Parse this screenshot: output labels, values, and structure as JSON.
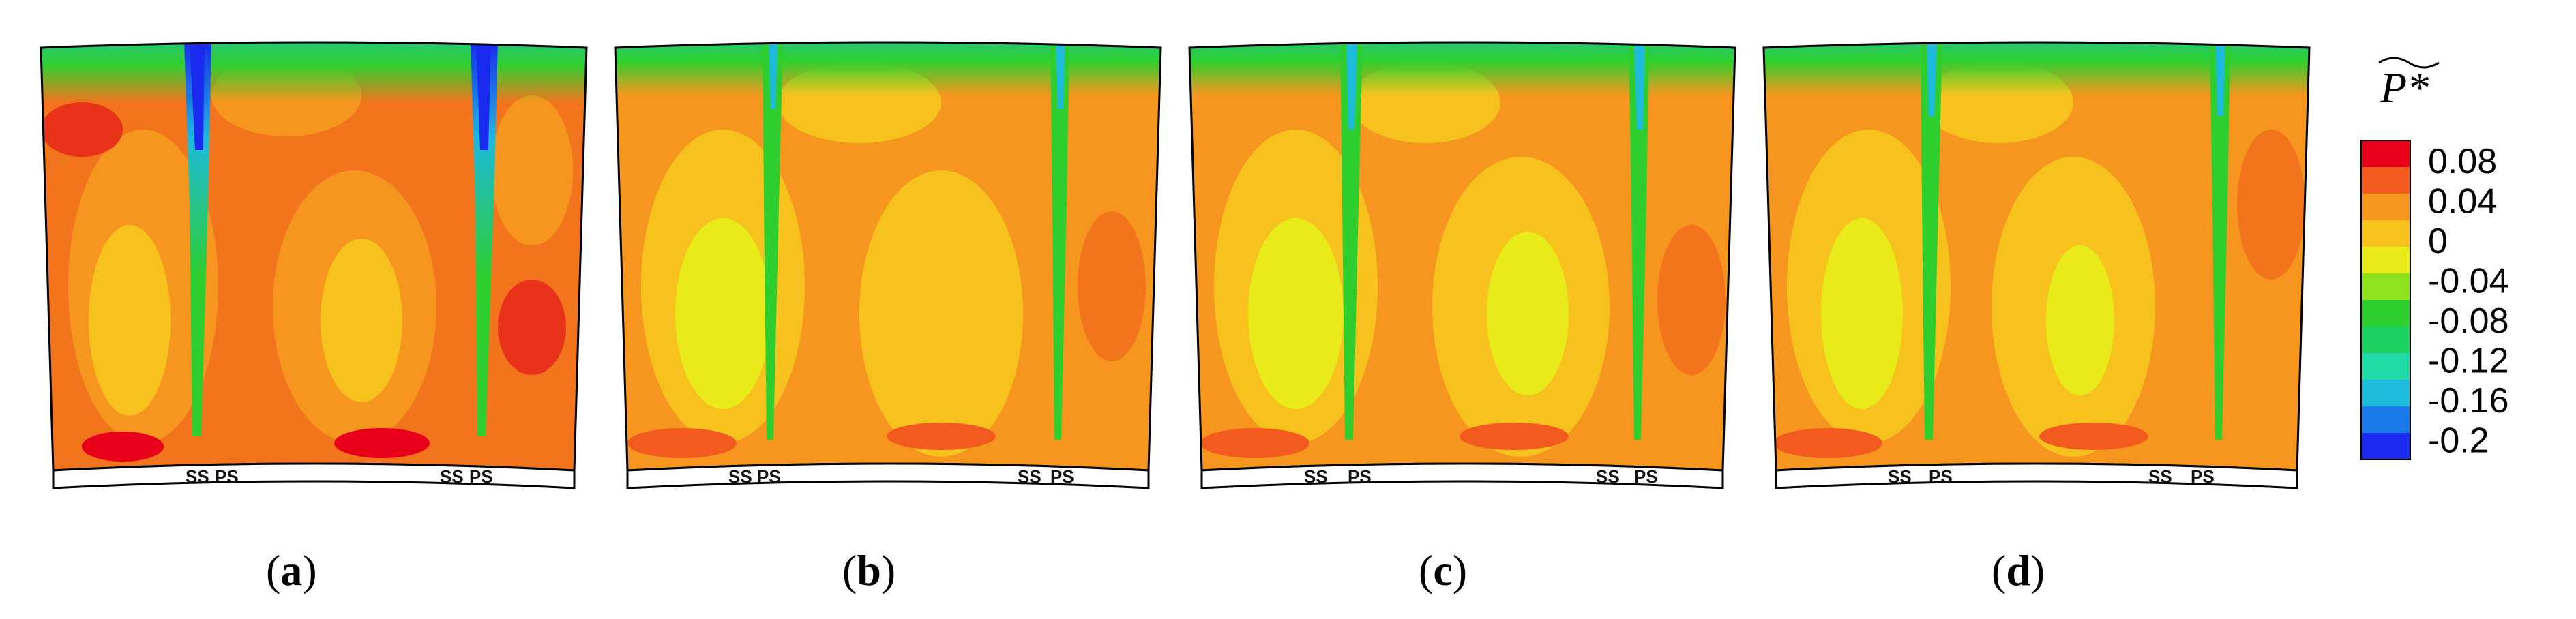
{
  "figure": {
    "panels": [
      {
        "id": "a",
        "caption": "a",
        "labels": [
          "SS",
          "PS",
          "SS",
          "PS"
        ]
      },
      {
        "id": "b",
        "caption": "b",
        "labels": [
          "SS",
          "PS",
          "SS",
          "PS"
        ]
      },
      {
        "id": "c",
        "caption": "c",
        "labels": [
          "SS",
          "PS",
          "SS",
          "PS"
        ]
      },
      {
        "id": "d",
        "caption": "d",
        "labels": [
          "SS",
          "PS",
          "SS",
          "PS"
        ]
      }
    ],
    "colorbar": {
      "title": "P*",
      "ticks": [
        "0.08",
        "0.04",
        "0",
        "-0.04",
        "-0.08",
        "-0.12",
        "-0.16",
        "-0.2"
      ],
      "colors": [
        "#e8001a",
        "#f25a1e",
        "#f6961e",
        "#f8c21e",
        "#e8ea1a",
        "#8ee21e",
        "#2ece2e",
        "#1ed062",
        "#22dca8",
        "#1ebadc",
        "#1a7aea",
        "#1a2aee"
      ]
    }
  }
}
